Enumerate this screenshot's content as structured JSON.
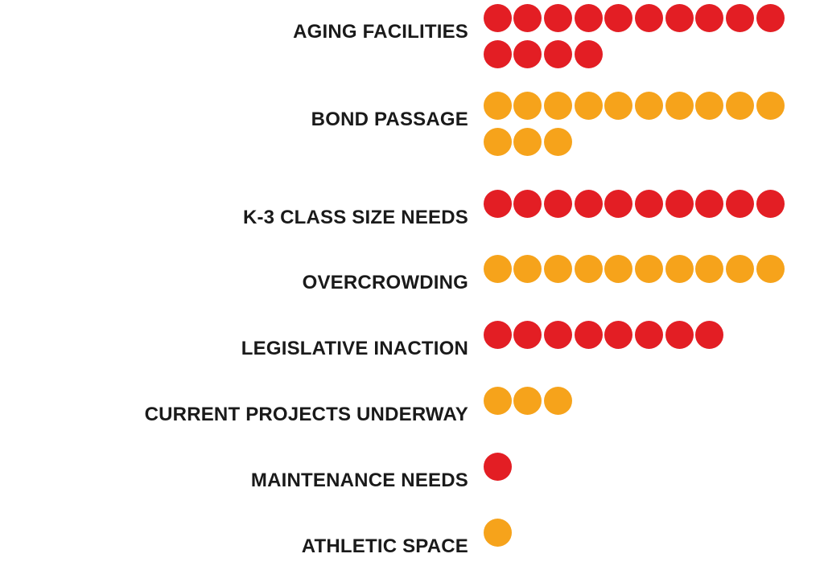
{
  "chart_data": {
    "type": "pictograph",
    "categories": [
      "AGING FACILITIES",
      "BOND PASSAGE",
      "K-3 CLASS SIZE NEEDS",
      "OVERCROWDING",
      "LEGISLATIVE INACTION",
      "CURRENT PROJECTS UNDERWAY",
      "MAINTENANCE NEEDS",
      "ATHLETIC SPACE"
    ],
    "values": [
      14,
      13,
      10,
      10,
      8,
      3,
      1,
      1
    ],
    "colors": [
      "#e31e24",
      "#f6a31b",
      "#e31e24",
      "#f6a31b",
      "#e31e24",
      "#f6a31b",
      "#e31e24",
      "#f6a31b"
    ],
    "dots_per_line": 10,
    "title": "",
    "xlabel": "",
    "ylabel": ""
  }
}
